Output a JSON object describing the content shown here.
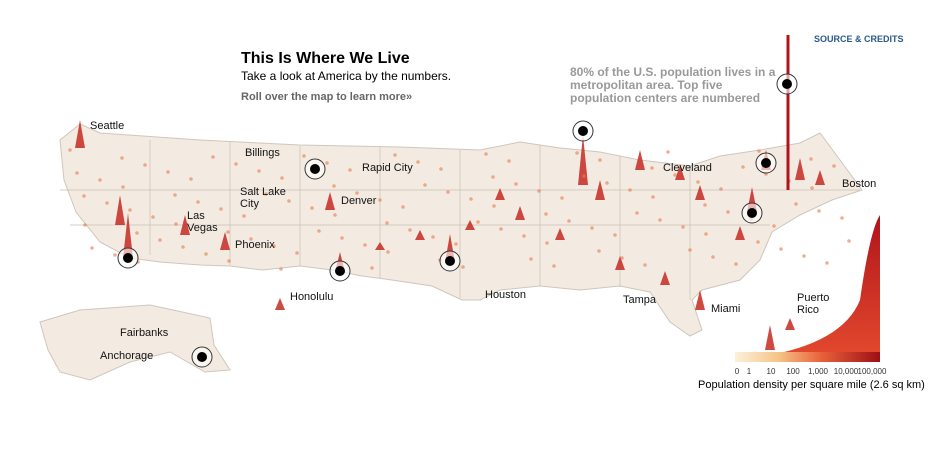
{
  "header": {
    "title": "This Is Where We Live",
    "subtitle": "Take a look at America by the numbers.",
    "instruction": "Roll over the map to learn more»"
  },
  "source_link": "SOURCE & CREDITS",
  "note": {
    "lines": [
      "80% of the U.S. population lives in a",
      "metropolitan area. Top five",
      "population centers are numbered"
    ]
  },
  "cities": [
    {
      "lines": [
        "Seattle"
      ]
    },
    {
      "lines": [
        "Billings"
      ]
    },
    {
      "lines": [
        "Rapid City"
      ]
    },
    {
      "lines": [
        "Salt Lake",
        "City"
      ]
    },
    {
      "lines": [
        "Denver"
      ]
    },
    {
      "lines": [
        "Las",
        "Vegas"
      ]
    },
    {
      "lines": [
        "Phoenix"
      ]
    },
    {
      "lines": [
        "Honolulu"
      ]
    },
    {
      "lines": [
        "Houston"
      ]
    },
    {
      "lines": [
        "Cleveland"
      ]
    },
    {
      "lines": [
        "Boston"
      ]
    },
    {
      "lines": [
        "Tampa"
      ]
    },
    {
      "lines": [
        "Miami"
      ]
    },
    {
      "lines": [
        "Puerto",
        "Rico"
      ]
    },
    {
      "lines": [
        "Fairbanks"
      ]
    },
    {
      "lines": [
        "Anchorage"
      ]
    }
  ],
  "legend": {
    "ticks": [
      "0",
      "1",
      "10",
      "100",
      "1,000",
      "10,000",
      "100,000"
    ],
    "title": "Population density per square mile (2.6 sq km)"
  }
}
